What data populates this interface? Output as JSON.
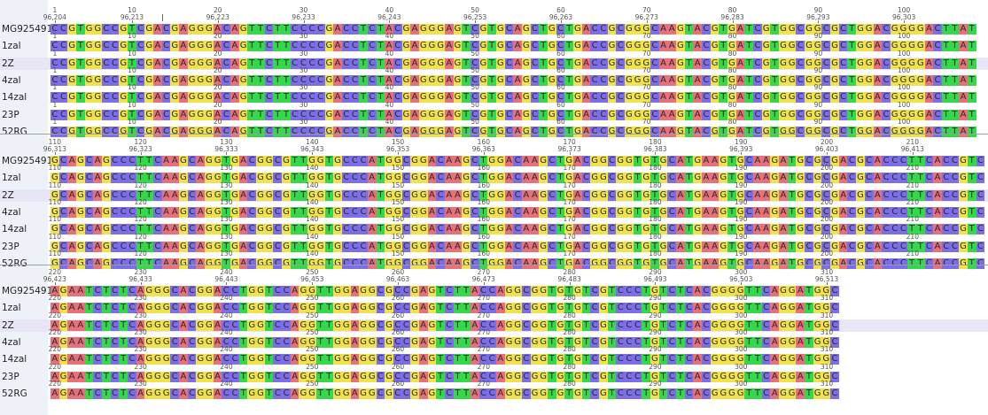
{
  "app": {
    "view": "Multiple sequence alignment",
    "highlighted_row": "2Z"
  },
  "sequences": [
    "MG925491",
    "1zal",
    "2Z",
    "4zal",
    "14zal",
    "23P",
    "52RG"
  ],
  "colors": {
    "A": "#e8707a",
    "C": "#7b6ee8",
    "G": "#f0e24a",
    "T": "#35d84a",
    "selected_row": "#e8e6f6",
    "left_pane": "#eef2f8"
  },
  "blocks": [
    {
      "start": 1,
      "consensus_coord_start": 96204,
      "ruler_ticks": [
        1,
        10,
        20,
        30,
        40,
        50,
        60,
        70,
        80,
        90,
        100
      ],
      "coord_ticks": [
        "96,204",
        "96,213",
        "96,223",
        "96,233",
        "96,243",
        "96,253",
        "96,263",
        "96,273",
        "96,283",
        "96,293",
        "96,303"
      ],
      "sequence": "CCGTGGCCGTCGACGAGGGACAGTTCTTCCCCGACCTCTACGAGGGAGTCGTGCAGCTGCTGACCGCGGGCAAGTACGTGATCGTGGCGGCGCTGGACGGGGACTTAT"
    },
    {
      "start": 110,
      "consensus_coord_start": 96313,
      "ruler_ticks": [
        110,
        120,
        130,
        140,
        150,
        160,
        170,
        180,
        190,
        200,
        210
      ],
      "coord_ticks": [
        "96,313",
        "96,323",
        "96,333",
        "96,343",
        "96,353",
        "96,363",
        "96,373",
        "96,383",
        "96,393",
        "96,403",
        "96,413"
      ],
      "sequence": "GCAGCAGCCCTTCAAGCAGGTGACGGCGTTGGTGCCCATGGCGGACAAGCTGGACAAGCTGACGGCGGTGTGCATGAAGTGCAAGATGCGCGACGCACCCTTCACCGTC"
    },
    {
      "start": 220,
      "consensus_coord_start": 96423,
      "ruler_ticks": [
        220,
        230,
        240,
        250,
        260,
        270,
        280,
        290,
        300,
        310
      ],
      "coord_ticks": [
        "96,423",
        "96,433",
        "96,443",
        "96,453",
        "96,463",
        "96,473",
        "96,483",
        "96,493",
        "96,503",
        "96,513"
      ],
      "sequence": "AGAATCTCTCAGGGCACGGACCTGGTCCAGGTTGGAGGCGCCGAGTCTTACCAGGCGGTGTGTCGTCCCTGTCTCACGGGGTTCAGGATGGC"
    }
  ]
}
